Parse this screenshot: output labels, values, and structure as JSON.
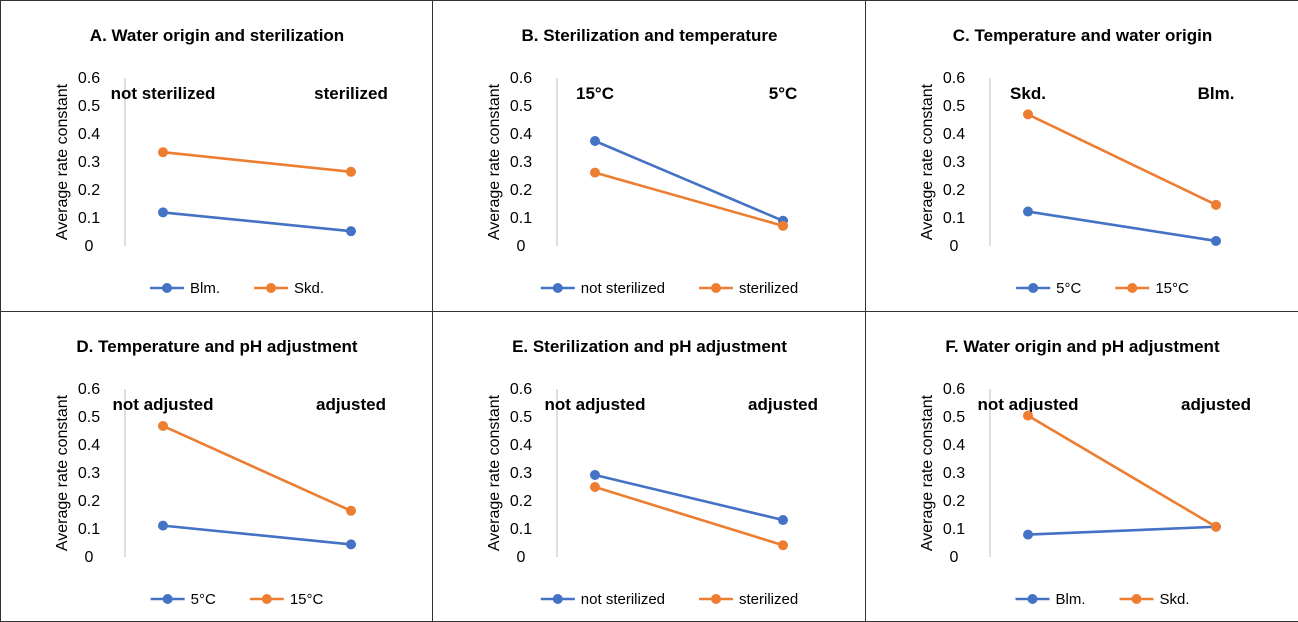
{
  "chart_data": [
    {
      "type": "line",
      "title": "A. Water origin and sterilization",
      "ylabel": "Average rate constant",
      "ylim": [
        0,
        0.6
      ],
      "yticks": [
        "0",
        "0.1",
        "0.2",
        "0.3",
        "0.4",
        "0.5",
        "0.6"
      ],
      "categories": [
        "not sterilized",
        "sterilized"
      ],
      "series": [
        {
          "name": "Blm.",
          "color": "#4472C4",
          "values": [
            0.12,
            0.053
          ]
        },
        {
          "name": "Skd.",
          "color": "#ED7D31",
          "values": [
            0.335,
            0.265
          ]
        }
      ],
      "legend": "bottom",
      "grid": false
    },
    {
      "type": "line",
      "title": "B. Sterilization and temperature",
      "ylabel": "Average rate constant",
      "ylim": [
        0,
        0.6
      ],
      "yticks": [
        "0",
        "0.1",
        "0.2",
        "0.3",
        "0.4",
        "0.5",
        "0.6"
      ],
      "categories": [
        "15°C",
        "5°C"
      ],
      "series": [
        {
          "name": "not sterilized",
          "color": "#4472C4",
          "values": [
            0.375,
            0.09
          ]
        },
        {
          "name": "sterilized",
          "color": "#ED7D31",
          "values": [
            0.262,
            0.072
          ]
        }
      ],
      "legend": "bottom",
      "grid": false
    },
    {
      "type": "line",
      "title": "C. Temperature and water origin",
      "ylabel": "Average rate constant",
      "ylim": [
        0,
        0.6
      ],
      "yticks": [
        "0",
        "0.1",
        "0.2",
        "0.3",
        "0.4",
        "0.5",
        "0.6"
      ],
      "categories": [
        "Skd.",
        "Blm."
      ],
      "series": [
        {
          "name": "5°C",
          "color": "#4472C4",
          "values": [
            0.123,
            0.018
          ]
        },
        {
          "name": "15°C",
          "color": "#ED7D31",
          "values": [
            0.47,
            0.147
          ]
        }
      ],
      "legend": "bottom",
      "grid": false
    },
    {
      "type": "line",
      "title": "D. Temperature and pH adjustment",
      "ylabel": "Average rate constant",
      "ylim": [
        0,
        0.6
      ],
      "yticks": [
        "0",
        "0.1",
        "0.2",
        "0.3",
        "0.4",
        "0.5",
        "0.6"
      ],
      "categories": [
        "not adjusted",
        "adjusted"
      ],
      "series": [
        {
          "name": "5°C",
          "color": "#4472C4",
          "values": [
            0.112,
            0.045
          ]
        },
        {
          "name": "15°C",
          "color": "#ED7D31",
          "values": [
            0.468,
            0.165
          ]
        }
      ],
      "legend": "bottom",
      "grid": false
    },
    {
      "type": "line",
      "title": "E. Sterilization and pH adjustment",
      "ylabel": "Average rate constant",
      "ylim": [
        0,
        0.6
      ],
      "yticks": [
        "0",
        "0.1",
        "0.2",
        "0.3",
        "0.4",
        "0.5",
        "0.6"
      ],
      "categories": [
        "not adjusted",
        "adjusted"
      ],
      "series": [
        {
          "name": "not sterilized",
          "color": "#4472C4",
          "values": [
            0.293,
            0.132
          ]
        },
        {
          "name": "sterilized",
          "color": "#ED7D31",
          "values": [
            0.25,
            0.042
          ]
        }
      ],
      "legend": "bottom",
      "grid": false
    },
    {
      "type": "line",
      "title": "F. Water origin and pH adjustment",
      "ylabel": "Average rate constant",
      "ylim": [
        0,
        0.6
      ],
      "yticks": [
        "0",
        "0.1",
        "0.2",
        "0.3",
        "0.4",
        "0.5",
        "0.6"
      ],
      "categories": [
        "not adjusted",
        "adjusted"
      ],
      "series": [
        {
          "name": "Blm.",
          "color": "#4472C4",
          "values": [
            0.08,
            0.108
          ]
        },
        {
          "name": "Skd.",
          "color": "#ED7D31",
          "values": [
            0.505,
            0.108
          ]
        }
      ],
      "legend": "bottom",
      "grid": false
    }
  ]
}
